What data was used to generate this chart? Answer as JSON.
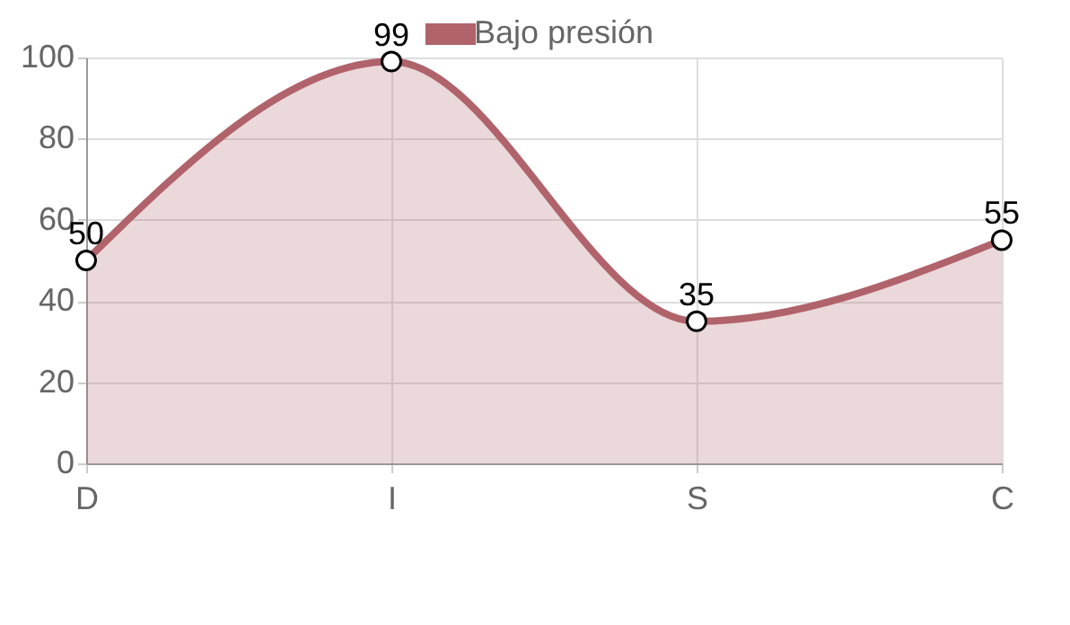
{
  "chart_data": {
    "type": "area",
    "categories": [
      "D",
      "I",
      "S",
      "C"
    ],
    "series": [
      {
        "name": "Bajo presión",
        "color": "#b0636b",
        "values": [
          50,
          99,
          35,
          55
        ]
      }
    ],
    "ylim": [
      0,
      100
    ],
    "yticks": [
      0,
      20,
      40,
      60,
      80,
      100
    ],
    "grid": true,
    "legend": "top",
    "marker": "circle",
    "data_labels": true
  }
}
